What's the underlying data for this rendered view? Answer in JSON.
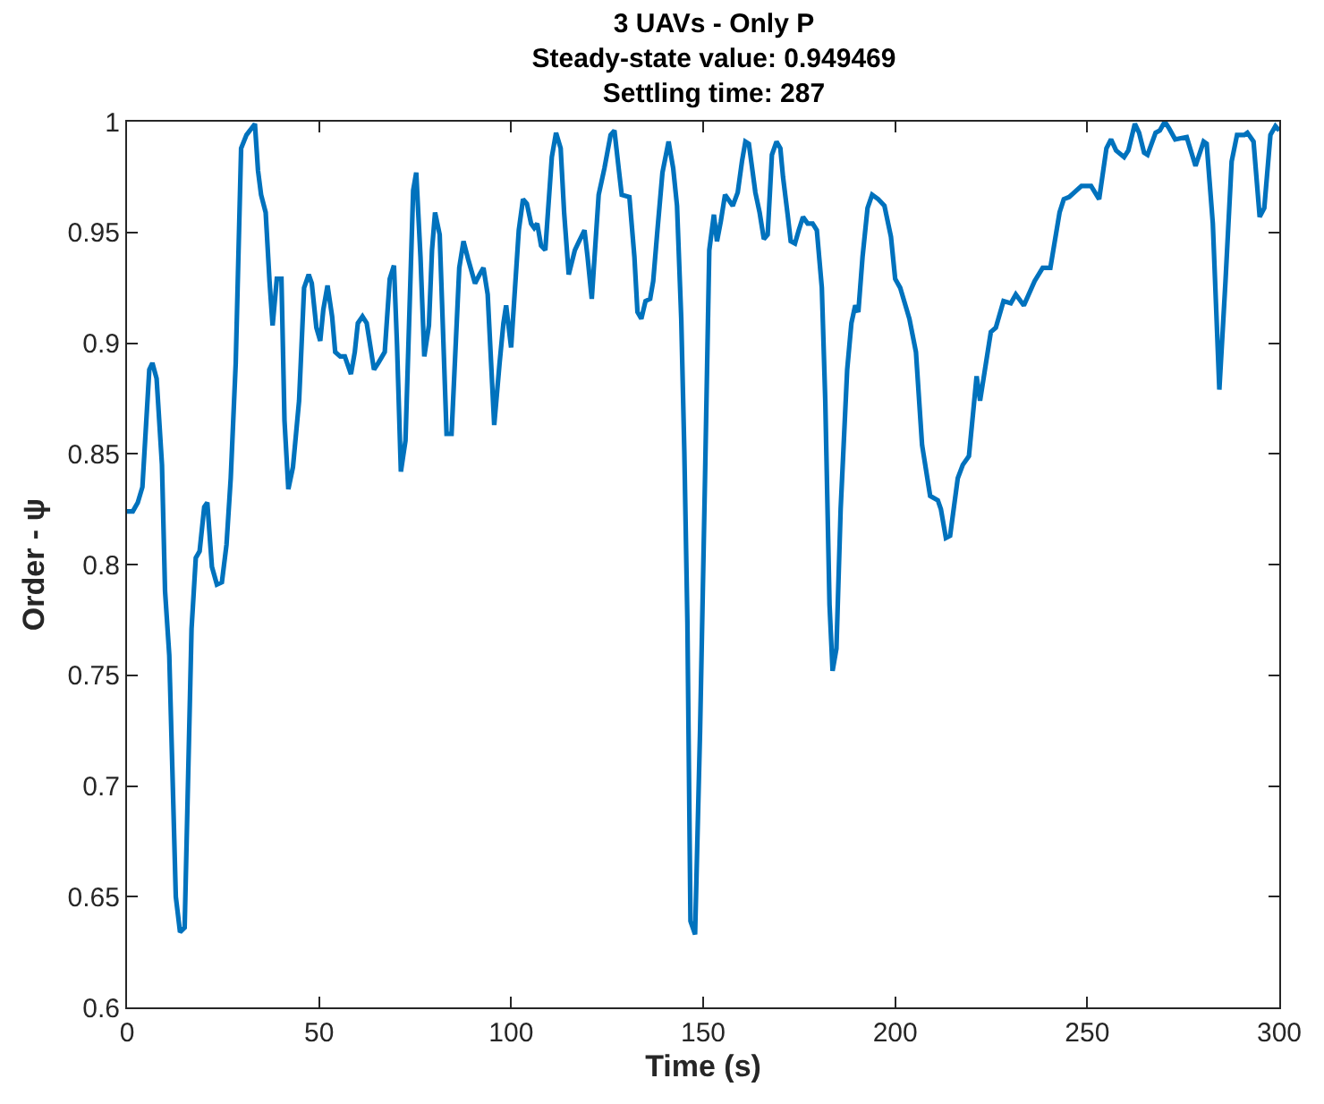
{
  "chart_data": {
    "type": "line",
    "title": "3 UAVs - Only P\nSteady-state value: 0.949469\nSettling time: 287",
    "xlabel": "Time (s)",
    "ylabel": "Order - ψ",
    "xlim": [
      0,
      300
    ],
    "xticks": [
      0,
      50,
      100,
      150,
      200,
      250,
      300
    ],
    "ylim": [
      0.6,
      1
    ],
    "yticks": [
      0.6,
      0.65,
      0.7,
      0.75,
      0.8,
      0.85,
      0.9,
      0.95,
      1
    ],
    "marker": "none",
    "line_style": "solid",
    "series": [
      {
        "color": "#0072bd",
        "x": [
          0,
          1.5,
          2.8,
          4,
          5.8,
          6.6,
          7.7,
          9.1,
          9.9,
          11,
          12.7,
          13.8,
          15,
          16.8,
          17.9,
          18.9,
          20.1,
          20.9,
          22.1,
          23.4,
          24.7,
          25.9,
          27,
          28.3,
          29.7,
          31.1,
          33.3,
          34.1,
          34.9,
          36.1,
          37.1,
          37.9,
          39,
          40.2,
          41,
          42,
          43.2,
          44.8,
          46.1,
          47.3,
          48.1,
          49.3,
          50.3,
          51.1,
          52.2,
          53.4,
          54.2,
          55.5,
          56.7,
          58.3,
          59.3,
          60.1,
          61.3,
          62.4,
          64.3,
          65.4,
          67.1,
          68.4,
          69.5,
          70.3,
          71.3,
          72.5,
          74.5,
          75.3,
          76.4,
          77.4,
          78.6,
          79.4,
          80.2,
          81.4,
          83.2,
          84.5,
          86.5,
          87.6,
          88.8,
          90.6,
          91.8,
          92.8,
          93.9,
          95.6,
          97,
          98,
          98.7,
          100,
          102,
          103.1,
          104.1,
          105.2,
          106,
          106.8,
          107.8,
          108.9,
          110.6,
          111.7,
          112.9,
          113.8,
          115,
          116.6,
          117.7,
          119.1,
          119.9,
          121,
          122.8,
          124.3,
          125.9,
          126.9,
          128,
          128.8,
          130.8,
          132.1,
          132.9,
          133.9,
          135,
          136.2,
          137,
          138.1,
          139.4,
          141,
          142.2,
          143.2,
          144.3,
          145.1,
          145.9,
          146.7,
          147.9,
          149.2,
          150.5,
          151.6,
          152.8,
          153.6,
          154.6,
          155.7,
          157.7,
          159,
          160.1,
          161,
          161.9,
          162.6,
          163.6,
          164.7,
          165.8,
          166.8,
          167.9,
          169.1,
          170.1,
          170.8,
          172,
          172.8,
          173.9,
          174.9,
          176,
          177.2,
          178.5,
          179.6,
          180.9,
          181.8,
          182.9,
          183.7,
          184.7,
          185.8,
          187.5,
          188.6,
          189.6,
          190.4,
          191.5,
          192.8,
          194,
          195.6,
          197.2,
          198.9,
          200,
          201.3,
          203.7,
          205.4,
          207,
          209.1,
          211.1,
          211.9,
          213.2,
          214.3,
          216.3,
          217.6,
          219.2,
          221.2,
          222.1,
          224.9,
          226.2,
          228.2,
          230.1,
          231.4,
          233.5,
          236.3,
          238.4,
          240.4,
          242.8,
          243.9,
          245.3,
          248.5,
          251,
          253.1,
          255,
          256.2,
          257.5,
          259.6,
          260.7,
          262.4,
          263.5,
          264.8,
          265.7,
          267.8,
          268.9,
          270.2,
          271.3,
          272.9,
          275.9,
          278.2,
          280.3,
          281.1,
          282.7,
          284.4,
          286,
          287.6,
          289,
          290.9,
          291.7,
          293.3,
          294.9,
          296.1,
          297.7,
          299,
          300
        ],
        "values": [
          0.824,
          0.824,
          0.828,
          0.835,
          0.888,
          0.891,
          0.884,
          0.845,
          0.788,
          0.759,
          0.65,
          0.634,
          0.636,
          0.771,
          0.803,
          0.806,
          0.826,
          0.828,
          0.799,
          0.791,
          0.792,
          0.809,
          0.839,
          0.891,
          0.988,
          0.994,
          0.999,
          0.978,
          0.967,
          0.959,
          0.928,
          0.908,
          0.929,
          0.929,
          0.865,
          0.834,
          0.844,
          0.874,
          0.925,
          0.931,
          0.927,
          0.907,
          0.901,
          0.915,
          0.926,
          0.912,
          0.896,
          0.894,
          0.894,
          0.886,
          0.896,
          0.909,
          0.912,
          0.909,
          0.888,
          0.891,
          0.896,
          0.929,
          0.935,
          0.899,
          0.842,
          0.856,
          0.969,
          0.977,
          0.939,
          0.894,
          0.908,
          0.942,
          0.959,
          0.949,
          0.859,
          0.859,
          0.934,
          0.946,
          0.938,
          0.927,
          0.931,
          0.934,
          0.922,
          0.863,
          0.891,
          0.909,
          0.917,
          0.898,
          0.951,
          0.965,
          0.963,
          0.954,
          0.952,
          0.954,
          0.944,
          0.942,
          0.984,
          0.995,
          0.988,
          0.959,
          0.931,
          0.942,
          0.946,
          0.951,
          0.939,
          0.92,
          0.967,
          0.979,
          0.994,
          0.996,
          0.979,
          0.967,
          0.966,
          0.939,
          0.914,
          0.911,
          0.919,
          0.92,
          0.928,
          0.951,
          0.977,
          0.991,
          0.979,
          0.962,
          0.911,
          0.851,
          0.774,
          0.639,
          0.633,
          0.725,
          0.84,
          0.942,
          0.958,
          0.946,
          0.955,
          0.967,
          0.962,
          0.968,
          0.982,
          0.991,
          0.99,
          0.981,
          0.968,
          0.959,
          0.947,
          0.949,
          0.985,
          0.991,
          0.988,
          0.975,
          0.958,
          0.946,
          0.945,
          0.951,
          0.957,
          0.954,
          0.954,
          0.951,
          0.925,
          0.874,
          0.782,
          0.752,
          0.762,
          0.825,
          0.888,
          0.909,
          0.917,
          0.914,
          0.939,
          0.961,
          0.967,
          0.965,
          0.962,
          0.948,
          0.929,
          0.925,
          0.911,
          0.896,
          0.854,
          0.831,
          0.829,
          0.825,
          0.812,
          0.813,
          0.839,
          0.845,
          0.849,
          0.885,
          0.874,
          0.905,
          0.907,
          0.919,
          0.918,
          0.922,
          0.917,
          0.928,
          0.934,
          0.934,
          0.959,
          0.965,
          0.966,
          0.971,
          0.971,
          0.965,
          0.988,
          0.992,
          0.987,
          0.984,
          0.987,
          0.999,
          0.995,
          0.986,
          0.985,
          0.995,
          0.996,
          1.0,
          0.997,
          0.992,
          0.993,
          0.98,
          0.991,
          0.99,
          0.954,
          0.879,
          0.928,
          0.982,
          0.994,
          0.994,
          0.995,
          0.991,
          0.957,
          0.961,
          0.994,
          0.998,
          0.996
        ]
      }
    ]
  }
}
